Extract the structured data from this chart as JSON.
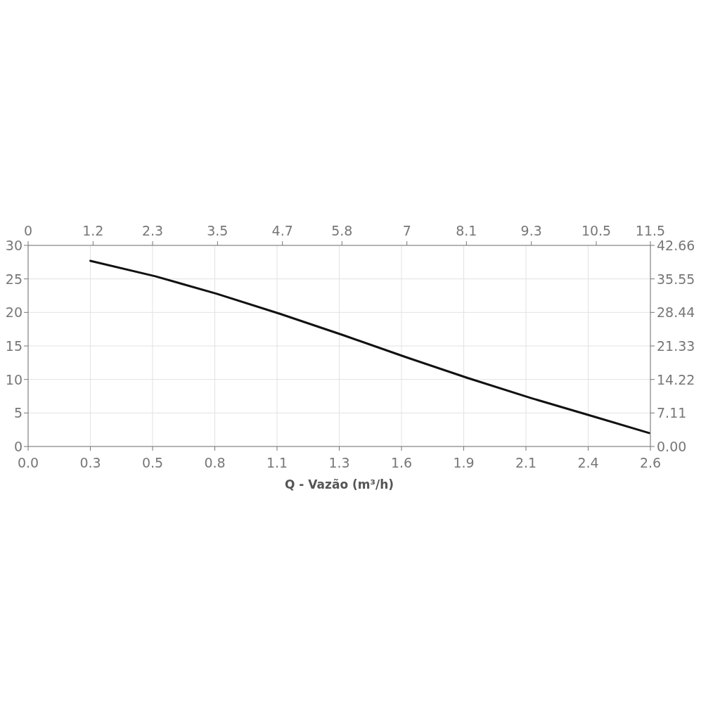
{
  "chart_data": {
    "type": "line",
    "xlabel": "Q - Vazão (m³/h)",
    "xlim": [
      0,
      2.645
    ],
    "xticks": [
      {
        "value": 0,
        "label": "0.0"
      },
      {
        "value": 0.2645,
        "label": "0.3"
      },
      {
        "value": 0.529,
        "label": "0.5"
      },
      {
        "value": 0.7935,
        "label": "0.8"
      },
      {
        "value": 1.058,
        "label": "1.1"
      },
      {
        "value": 1.3225,
        "label": "1.3"
      },
      {
        "value": 1.587,
        "label": "1.6"
      },
      {
        "value": 1.8515,
        "label": "1.9"
      },
      {
        "value": 2.116,
        "label": "2.1"
      },
      {
        "value": 2.3805,
        "label": "2.4"
      },
      {
        "value": 2.645,
        "label": "2.6"
      }
    ],
    "x2lim": [
      0,
      11.5
    ],
    "x2ticks": [
      0,
      1.2,
      2.3,
      3.5,
      4.7,
      5.8,
      7,
      8.1,
      9.3,
      10.5,
      11.5
    ],
    "ylim": [
      0,
      30
    ],
    "yticks": [
      0,
      5,
      10,
      15,
      20,
      25,
      30
    ],
    "y2lim": [
      0,
      42.66
    ],
    "y2ticks": [
      {
        "value": 0,
        "label": "0.00"
      },
      7.11,
      14.22,
      21.33,
      28.44,
      35.55,
      42.66
    ],
    "grid": true,
    "series": [
      {
        "color": "#111111",
        "axis": "y",
        "x": [
          0.2645,
          0.54,
          0.8,
          1.07,
          1.34,
          1.6,
          1.87,
          2.14,
          2.41,
          2.64
        ],
        "values": [
          27.7,
          25.4,
          22.8,
          19.8,
          16.6,
          13.4,
          10.2,
          7.2,
          4.4,
          2.0
        ]
      }
    ]
  }
}
